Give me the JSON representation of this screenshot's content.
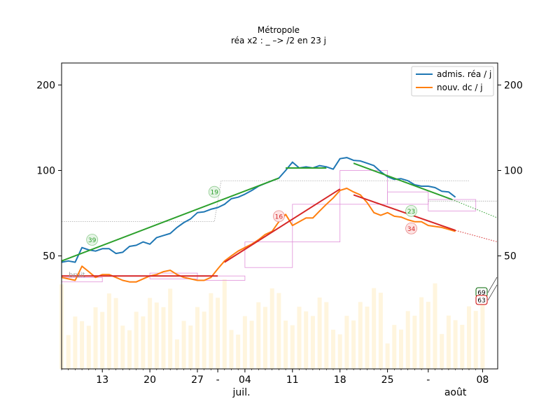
{
  "chart_data": {
    "type": "line",
    "title": "Métropole",
    "subtitle": "réa x2 : _ –> /2 en 23 j",
    "xlabel": "",
    "ylabel": "",
    "ylim": [
      20,
      239
    ],
    "y_ticks": [
      50,
      100,
      200
    ],
    "x_ticks": [
      {
        "day": 13,
        "label": "13"
      },
      {
        "day": 20,
        "label": "20"
      },
      {
        "day": 27,
        "label": "27"
      },
      {
        "day": 30,
        "label": "-"
      },
      {
        "day": 34,
        "label": "04"
      },
      {
        "day": 41,
        "label": "11"
      },
      {
        "day": 48,
        "label": "18"
      },
      {
        "day": 55,
        "label": "25"
      },
      {
        "day": 61,
        "label": "-"
      },
      {
        "day": 69,
        "label": "08"
      }
    ],
    "month_labels": [
      {
        "day": 33.5,
        "label": "juil."
      },
      {
        "day": 65,
        "label": "août"
      }
    ],
    "noise_label": "bruit",
    "series": [
      {
        "name": "admis. réa / j",
        "color": "#1f77b4",
        "x": [
          7,
          8,
          9,
          10,
          11,
          12,
          13,
          14,
          15,
          16,
          17,
          18,
          19,
          20,
          21,
          22,
          23,
          24,
          25,
          26,
          27,
          28,
          29,
          30,
          31,
          32,
          33,
          34,
          35,
          36,
          37,
          38,
          39,
          40,
          41,
          42,
          43,
          44,
          45,
          46,
          47,
          48,
          49,
          50,
          51,
          52,
          53,
          54,
          55,
          56,
          57,
          58,
          59,
          60,
          61,
          62,
          63,
          64,
          65
        ],
        "values": [
          47.5,
          48,
          47.5,
          53.5,
          52.5,
          52,
          53,
          53,
          51,
          51.5,
          54,
          54.5,
          56,
          55,
          58,
          59,
          60,
          63,
          65.5,
          67.5,
          71,
          71.5,
          73,
          74,
          76,
          79.5,
          80.5,
          82.5,
          85,
          88,
          90,
          92,
          94,
          100,
          107,
          102,
          103,
          102,
          104,
          103,
          101,
          110,
          111,
          108.5,
          108,
          106,
          104,
          99,
          95,
          93,
          93.5,
          92,
          89,
          88,
          88,
          87,
          84.5,
          84,
          80.5
        ]
      },
      {
        "name": "nouv. dc / j",
        "color": "#ff7f0e",
        "x": [
          7,
          8,
          9,
          10,
          11,
          12,
          13,
          14,
          15,
          16,
          17,
          18,
          19,
          20,
          21,
          22,
          23,
          24,
          25,
          26,
          27,
          28,
          29,
          30,
          31,
          32,
          33,
          34,
          35,
          36,
          37,
          38,
          39,
          40,
          41,
          42,
          43,
          44,
          45,
          46,
          47,
          48,
          49,
          50,
          51,
          52,
          53,
          54,
          55,
          56,
          57,
          58,
          59,
          60,
          61,
          62,
          63,
          64,
          65
        ],
        "values": [
          42,
          41.5,
          41,
          46,
          44,
          42,
          43,
          43,
          42,
          41,
          40.5,
          40.5,
          41.5,
          42.5,
          43,
          44,
          44.5,
          43,
          42,
          41.5,
          41,
          41,
          42,
          45,
          48,
          50,
          52,
          53.5,
          55,
          57,
          59.5,
          61,
          66,
          70,
          64,
          66,
          68,
          68,
          72,
          76,
          80,
          85,
          86.5,
          84,
          82,
          77,
          71,
          69.5,
          71,
          69,
          68.5,
          67,
          66,
          66,
          64,
          63.5,
          63,
          62,
          61
        ]
      }
    ],
    "trend_lines": [
      {
        "color": "#2ca02c",
        "x": [
          7,
          39
        ],
        "values": [
          48,
          94
        ]
      },
      {
        "color": "#2ca02c",
        "x": [
          40,
          46
        ],
        "values": [
          102,
          102
        ]
      },
      {
        "color": "#2ca02c",
        "x": [
          50,
          64.5
        ],
        "values": [
          106,
          79
        ]
      },
      {
        "color": "#d62728",
        "x": [
          7,
          30
        ],
        "values": [
          42.5,
          42.5
        ]
      },
      {
        "color": "#d62728",
        "x": [
          31,
          48
        ],
        "values": [
          47.5,
          86
        ]
      },
      {
        "color": "#d62728",
        "x": [
          50,
          65
        ],
        "values": [
          82,
          61.5
        ]
      }
    ],
    "markers": [
      {
        "day": 11.5,
        "value": 57,
        "label": "39",
        "color": "#2ca02c"
      },
      {
        "day": 29.5,
        "value": 84,
        "label": "19",
        "color": "#2ca02c"
      },
      {
        "day": 39,
        "value": 69,
        "label": "16",
        "color": "#d62728"
      },
      {
        "day": 58.5,
        "value": 72,
        "label": "23",
        "color": "#2ca02c"
      },
      {
        "day": 58.5,
        "value": 62.5,
        "label": "34",
        "color": "#d62728"
      }
    ],
    "end_labels": [
      {
        "label": "69",
        "color": "#006400"
      },
      {
        "label": "63",
        "color": "#cc0000"
      }
    ],
    "legend_position": "upper right",
    "grid": false
  }
}
